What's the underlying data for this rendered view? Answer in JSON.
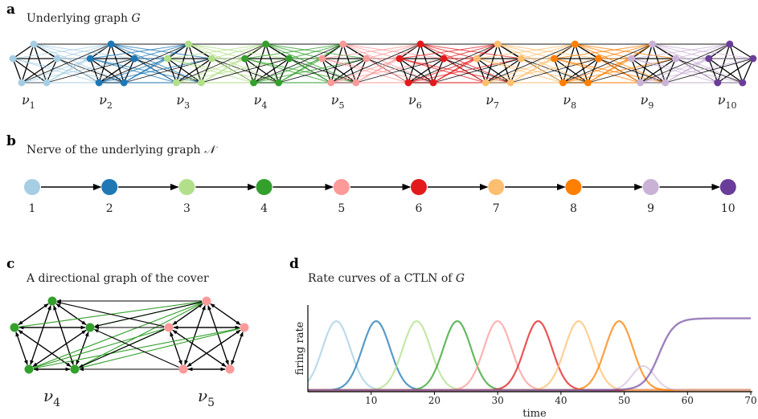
{
  "panels": {
    "a": {
      "label": "a",
      "title": "Underlying graph",
      "symbol": "G"
    },
    "b": {
      "label": "b",
      "title": "Nerve of the underlying graph",
      "symbol": "𝒩"
    },
    "c": {
      "label": "c",
      "title": "A directional graph of the cover"
    },
    "d": {
      "label": "d",
      "title": "Rate curves of a CTLN of",
      "symbol": "G"
    }
  },
  "colors": [
    "#a6cee3",
    "#1f78b4",
    "#b2df8a",
    "#33a02c",
    "#fb9a99",
    "#e31a1c",
    "#fdbf6f",
    "#ff7f00",
    "#cab2d6",
    "#6a3d9a"
  ],
  "covers": [
    {
      "name": "ν",
      "sub": "1"
    },
    {
      "name": "ν",
      "sub": "2"
    },
    {
      "name": "ν",
      "sub": "3"
    },
    {
      "name": "ν",
      "sub": "4"
    },
    {
      "name": "ν",
      "sub": "5"
    },
    {
      "name": "ν",
      "sub": "6"
    },
    {
      "name": "ν",
      "sub": "7"
    },
    {
      "name": "ν",
      "sub": "8"
    },
    {
      "name": "ν",
      "sub": "9"
    },
    {
      "name": "ν",
      "sub": "10"
    }
  ],
  "nerve": {
    "labels": [
      "1",
      "2",
      "3",
      "4",
      "5",
      "6",
      "7",
      "8",
      "9",
      "10"
    ]
  },
  "panel_c": {
    "left": {
      "name": "ν",
      "sub": "4"
    },
    "right": {
      "name": "ν",
      "sub": "5"
    }
  },
  "chart_data": {
    "type": "line",
    "title": "Rate curves of a CTLN of G",
    "xlabel": "time",
    "ylabel": "firing rate",
    "xlim": [
      0,
      70
    ],
    "xticks": [
      10,
      20,
      30,
      40,
      50,
      60,
      70
    ],
    "peaks": [
      4.5,
      10.8,
      17.2,
      23.6,
      30.0,
      36.4,
      42.8,
      49.2
    ],
    "final_rise_time": 55.5,
    "series_colors": [
      "#a6cee3",
      "#1f78b4",
      "#b2df8a",
      "#33a02c",
      "#fb9a99",
      "#e31a1c",
      "#fdbf6f",
      "#ff7f00",
      "#cab2d6",
      "#6a3d9a"
    ]
  }
}
